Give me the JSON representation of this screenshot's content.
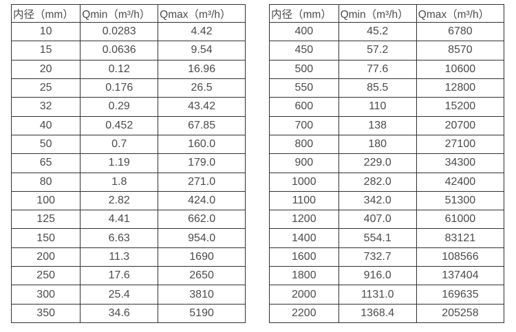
{
  "colors": {
    "background": "#ffffff",
    "border": "#2f2f2f",
    "text": "#4a4a4a"
  },
  "chart_data": [
    {
      "type": "table",
      "name": "flow-table-small-diameters",
      "headers": [
        "内径（mm）",
        "Qmin（m³/h）",
        "Qmax（m³/h）"
      ],
      "rows": [
        [
          "10",
          "0.0283",
          "4.42"
        ],
        [
          "15",
          "0.0636",
          "9.54"
        ],
        [
          "20",
          "0.12",
          "16.96"
        ],
        [
          "25",
          "0.176",
          "26.5"
        ],
        [
          "32",
          "0.29",
          "43.42"
        ],
        [
          "40",
          "0.452",
          "67.85"
        ],
        [
          "50",
          "0.7",
          "160.0"
        ],
        [
          "65",
          "1.19",
          "179.0"
        ],
        [
          "80",
          "1.8",
          "271.0"
        ],
        [
          "100",
          "2.82",
          "424.0"
        ],
        [
          "125",
          "4.41",
          "662.0"
        ],
        [
          "150",
          "6.63",
          "954.0"
        ],
        [
          "200",
          "11.3",
          "1690"
        ],
        [
          "250",
          "17.6",
          "2650"
        ],
        [
          "300",
          "25.4",
          "3810"
        ],
        [
          "350",
          "34.6",
          "5190"
        ]
      ]
    },
    {
      "type": "table",
      "name": "flow-table-large-diameters",
      "headers": [
        "内径（mm）",
        "Qmin（m³/h）",
        "Qmax（m³/h）"
      ],
      "rows": [
        [
          "400",
          "45.2",
          "6780"
        ],
        [
          "450",
          "57.2",
          "8570"
        ],
        [
          "500",
          "77.6",
          "10600"
        ],
        [
          "550",
          "85.5",
          "12800"
        ],
        [
          "600",
          "110",
          "15200"
        ],
        [
          "700",
          "138",
          "20700"
        ],
        [
          "800",
          "180",
          "27100"
        ],
        [
          "900",
          "229.0",
          "34300"
        ],
        [
          "1000",
          "282.0",
          "42400"
        ],
        [
          "1100",
          "342.0",
          "51300"
        ],
        [
          "1200",
          "407.0",
          "61000"
        ],
        [
          "1400",
          "554.1",
          "83121"
        ],
        [
          "1600",
          "732.7",
          "108566"
        ],
        [
          "1800",
          "916.0",
          "137404"
        ],
        [
          "2000",
          "1131.0",
          "169635"
        ],
        [
          "2200",
          "1368.4",
          "205258"
        ]
      ]
    }
  ]
}
